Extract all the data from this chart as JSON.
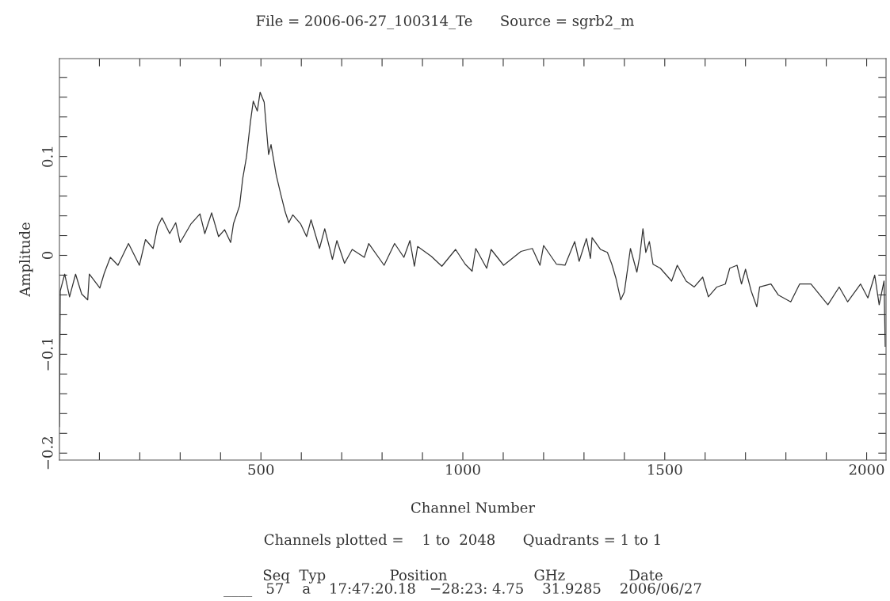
{
  "chart_data": {
    "type": "line",
    "title": "File = 2006-06-27_100314_Te      Source = sgrb2_m",
    "xlabel": "Channel Number",
    "ylabel": "Amplitude",
    "x": [
      1,
      3,
      14,
      26,
      41,
      56,
      71,
      75,
      101,
      112,
      127,
      146,
      172,
      199,
      214,
      233,
      244,
      255,
      274,
      289,
      300,
      327,
      349,
      361,
      378,
      395,
      410,
      425,
      432,
      447,
      455,
      464,
      474,
      481,
      491,
      498,
      508,
      519,
      525,
      538,
      549,
      560,
      569,
      579,
      598,
      613,
      624,
      645,
      658,
      677,
      688,
      707,
      726,
      756,
      767,
      805,
      831,
      854,
      869,
      880,
      888,
      922,
      948,
      982,
      1006,
      1023,
      1032,
      1059,
      1070,
      1101,
      1144,
      1172,
      1191,
      1200,
      1232,
      1253,
      1277,
      1288,
      1306,
      1316,
      1320,
      1341,
      1358,
      1369,
      1379,
      1391,
      1400,
      1415,
      1431,
      1438,
      1446,
      1453,
      1462,
      1471,
      1489,
      1517,
      1531,
      1553,
      1573,
      1594,
      1608,
      1629,
      1650,
      1661,
      1679,
      1690,
      1700,
      1714,
      1728,
      1735,
      1763,
      1781,
      1812,
      1834,
      1862,
      1904,
      1932,
      1953,
      1985,
      2003,
      2020,
      2031,
      2043,
      2046
    ],
    "series": [
      {
        "color": "#333333",
        "values": [
          -0.173,
          -0.036,
          -0.019,
          -0.042,
          -0.019,
          -0.039,
          -0.045,
          -0.019,
          -0.033,
          -0.018,
          -0.002,
          -0.01,
          0.012,
          -0.01,
          0.016,
          0.007,
          0.029,
          0.038,
          0.022,
          0.033,
          0.013,
          0.032,
          0.042,
          0.022,
          0.043,
          0.019,
          0.026,
          0.013,
          0.032,
          0.05,
          0.078,
          0.099,
          0.135,
          0.156,
          0.146,
          0.165,
          0.155,
          0.102,
          0.112,
          0.081,
          0.062,
          0.044,
          0.033,
          0.041,
          0.032,
          0.019,
          0.036,
          0.007,
          0.027,
          -0.004,
          0.015,
          -0.008,
          0.006,
          -0.002,
          0.012,
          -0.01,
          0.012,
          -0.002,
          0.015,
          -0.011,
          0.009,
          -0.001,
          -0.011,
          0.006,
          -0.009,
          -0.016,
          0.007,
          -0.013,
          0.006,
          -0.01,
          0.004,
          0.007,
          -0.01,
          0.01,
          -0.009,
          -0.01,
          0.014,
          -0.006,
          0.017,
          -0.003,
          0.018,
          0.006,
          0.003,
          -0.009,
          -0.023,
          -0.045,
          -0.037,
          0.007,
          -0.017,
          -0.001,
          0.027,
          0.003,
          0.014,
          -0.009,
          -0.013,
          -0.026,
          -0.01,
          -0.026,
          -0.032,
          -0.022,
          -0.042,
          -0.032,
          -0.029,
          -0.013,
          -0.01,
          -0.029,
          -0.014,
          -0.036,
          -0.052,
          -0.032,
          -0.029,
          -0.04,
          -0.047,
          -0.029,
          -0.029,
          -0.05,
          -0.032,
          -0.047,
          -0.029,
          -0.043,
          -0.02,
          -0.05,
          -0.026,
          -0.092
        ]
      }
    ],
    "xlim": [
      1,
      2048
    ],
    "xticks": [
      {
        "value": 100,
        "label": null
      },
      {
        "value": 200,
        "label": null
      },
      {
        "value": 300,
        "label": null
      },
      {
        "value": 400,
        "label": null
      },
      500,
      {
        "value": 600,
        "label": null
      },
      {
        "value": 700,
        "label": null
      },
      {
        "value": 800,
        "label": null
      },
      {
        "value": 900,
        "label": null
      },
      1000,
      {
        "value": 1100,
        "label": null
      },
      {
        "value": 1200,
        "label": null
      },
      {
        "value": 1300,
        "label": null
      },
      {
        "value": 1400,
        "label": null
      },
      1500,
      {
        "value": 1600,
        "label": null
      },
      {
        "value": 1700,
        "label": null
      },
      {
        "value": 1800,
        "label": null
      },
      {
        "value": 1900,
        "label": null
      },
      2000
    ],
    "ylim": [
      -0.207,
      0.199
    ],
    "yticks": [
      {
        "value": -0.2,
        "label": "−0.2"
      },
      {
        "value": -0.18,
        "label": null
      },
      {
        "value": -0.16,
        "label": null
      },
      {
        "value": -0.14,
        "label": null
      },
      {
        "value": -0.12,
        "label": null
      },
      {
        "value": -0.1,
        "label": "−0.1"
      },
      {
        "value": -0.08,
        "label": null
      },
      {
        "value": -0.06,
        "label": null
      },
      {
        "value": -0.04,
        "label": null
      },
      {
        "value": -0.02,
        "label": null
      },
      0,
      {
        "value": 0.02,
        "label": null
      },
      {
        "value": 0.04,
        "label": null
      },
      {
        "value": 0.06,
        "label": null
      },
      {
        "value": 0.08,
        "label": null
      },
      0.1,
      {
        "value": 0.12,
        "label": null
      },
      {
        "value": 0.14,
        "label": null
      },
      {
        "value": 0.16,
        "label": null
      },
      {
        "value": 0.18,
        "label": null
      }
    ],
    "grid": false,
    "marker": "none",
    "line_style": "solid",
    "annotations": [
      "Channels plotted =    1 to  2048      Quadrants = 1 to 1",
      "Seq  Typ              Position                   GHz              Date",
      "____   57    a    17:47:20.18   −28:23: 4.75    31.9285    2006/06/27"
    ]
  }
}
